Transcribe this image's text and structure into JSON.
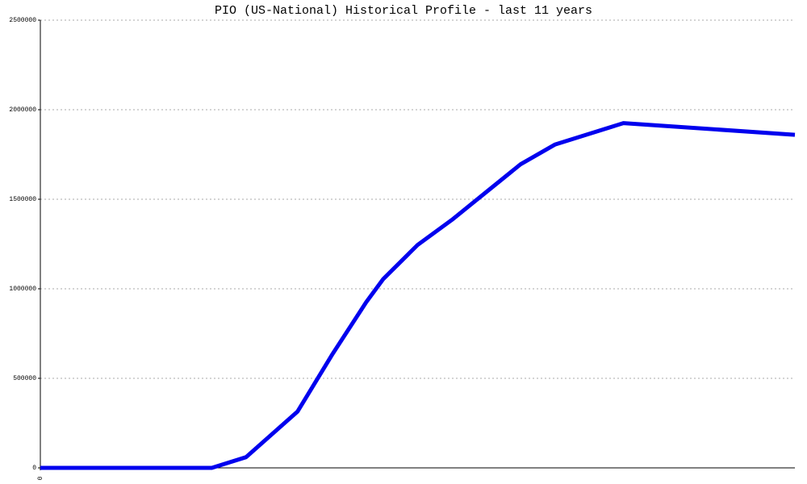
{
  "chart_data": {
    "type": "line",
    "title": "PIO (US-National) Historical Profile - last 11 years",
    "x": [
      0,
      2.5,
      3,
      3.75,
      4.25,
      4.75,
      5,
      5.5,
      6,
      6.5,
      7,
      7.5,
      8.5,
      11
    ],
    "series": [
      {
        "name": "PIO",
        "color": "#0000ee",
        "values": [
          0,
          0,
          60000,
          315000,
          630000,
          925000,
          1055000,
          1245000,
          1385000,
          1540000,
          1695000,
          1805000,
          1925000,
          1860000
        ]
      }
    ],
    "xlim": [
      0,
      11
    ],
    "xticks": [
      0
    ],
    "ylim": [
      0,
      2500000
    ],
    "yticks": [
      0,
      500000,
      1000000,
      1500000,
      2000000,
      2500000
    ],
    "grid": true
  }
}
